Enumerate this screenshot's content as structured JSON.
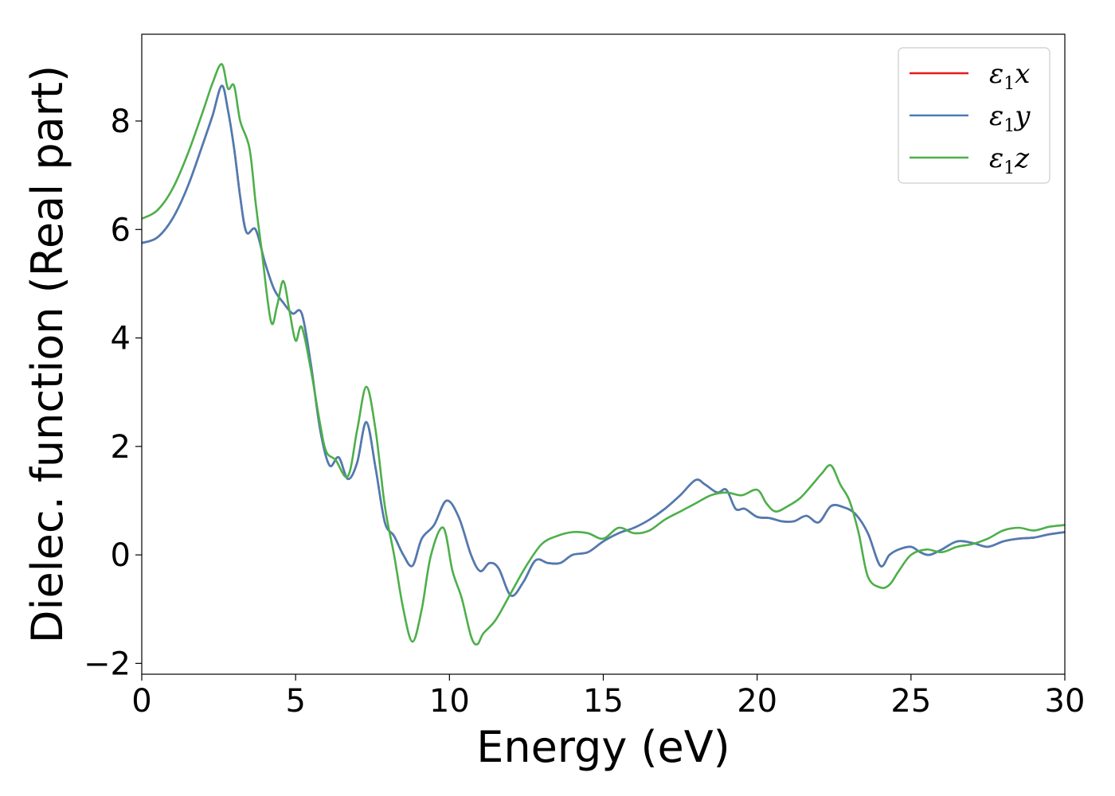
{
  "chart_data": {
    "type": "line",
    "title": "",
    "xlabel": "Energy (eV)",
    "ylabel": "Dielec. function (Real part)",
    "xlim": [
      0,
      30
    ],
    "ylim": [
      -2.2,
      9.6
    ],
    "xticks": [
      0,
      5,
      10,
      15,
      20,
      25,
      30
    ],
    "yticks": [
      -2,
      0,
      2,
      4,
      6,
      8
    ],
    "grid": false,
    "legend_position": "top-right",
    "series": [
      {
        "name": "ε1x",
        "legend_symbol": "ε",
        "legend_sub": "1",
        "legend_var": "x",
        "color": "#e41a1c",
        "x": [
          0,
          0.5,
          1.0,
          1.5,
          2.0,
          2.3,
          2.6,
          2.8,
          3.0,
          3.2,
          3.4,
          3.7,
          4.0,
          4.3,
          4.6,
          4.9,
          5.2,
          5.5,
          5.8,
          6.1,
          6.4,
          6.7,
          7.0,
          7.3,
          7.6,
          7.9,
          8.2,
          8.5,
          8.8,
          9.1,
          9.5,
          9.9,
          10.3,
          10.7,
          11.0,
          11.3,
          11.6,
          12.0,
          12.4,
          12.8,
          13.2,
          13.6,
          14.0,
          14.5,
          15.0,
          15.5,
          16.0,
          16.5,
          17.0,
          17.5,
          18.0,
          18.3,
          18.7,
          19.0,
          19.3,
          19.6,
          20.0,
          20.4,
          20.8,
          21.2,
          21.6,
          22.0,
          22.4,
          22.8,
          23.2,
          23.6,
          24.0,
          24.3,
          24.6,
          25.0,
          25.3,
          25.6,
          26.0,
          26.5,
          27.0,
          27.5,
          28.0,
          28.5,
          29.0,
          29.5,
          30.0
        ],
        "y": [
          5.75,
          5.85,
          6.2,
          6.8,
          7.6,
          8.1,
          8.65,
          8.2,
          7.5,
          6.6,
          5.95,
          6.0,
          5.4,
          4.9,
          4.65,
          4.45,
          4.45,
          3.5,
          2.3,
          1.65,
          1.8,
          1.4,
          1.7,
          2.45,
          1.6,
          0.6,
          0.35,
          0.0,
          -0.2,
          0.3,
          0.55,
          1.0,
          0.7,
          0.0,
          -0.3,
          -0.15,
          -0.25,
          -0.75,
          -0.5,
          -0.1,
          -0.15,
          -0.15,
          0.0,
          0.05,
          0.25,
          0.4,
          0.5,
          0.65,
          0.85,
          1.1,
          1.38,
          1.3,
          1.15,
          1.2,
          0.85,
          0.85,
          0.7,
          0.68,
          0.62,
          0.62,
          0.72,
          0.6,
          0.9,
          0.88,
          0.75,
          0.4,
          -0.2,
          0.0,
          0.1,
          0.15,
          0.05,
          0.0,
          0.1,
          0.25,
          0.22,
          0.15,
          0.25,
          0.3,
          0.32,
          0.38,
          0.42
        ]
      },
      {
        "name": "ε1y",
        "legend_symbol": "ε",
        "legend_sub": "1",
        "legend_var": "y",
        "color": "#4a7db5",
        "x": [
          0,
          0.5,
          1.0,
          1.5,
          2.0,
          2.3,
          2.6,
          2.8,
          3.0,
          3.2,
          3.4,
          3.7,
          4.0,
          4.3,
          4.6,
          4.9,
          5.2,
          5.5,
          5.8,
          6.1,
          6.4,
          6.7,
          7.0,
          7.3,
          7.6,
          7.9,
          8.2,
          8.5,
          8.8,
          9.1,
          9.5,
          9.9,
          10.3,
          10.7,
          11.0,
          11.3,
          11.6,
          12.0,
          12.4,
          12.8,
          13.2,
          13.6,
          14.0,
          14.5,
          15.0,
          15.5,
          16.0,
          16.5,
          17.0,
          17.5,
          18.0,
          18.3,
          18.7,
          19.0,
          19.3,
          19.6,
          20.0,
          20.4,
          20.8,
          21.2,
          21.6,
          22.0,
          22.4,
          22.8,
          23.2,
          23.6,
          24.0,
          24.3,
          24.6,
          25.0,
          25.3,
          25.6,
          26.0,
          26.5,
          27.0,
          27.5,
          28.0,
          28.5,
          29.0,
          29.5,
          30.0
        ],
        "y": [
          5.75,
          5.85,
          6.2,
          6.8,
          7.6,
          8.1,
          8.65,
          8.2,
          7.5,
          6.6,
          5.95,
          6.0,
          5.4,
          4.9,
          4.65,
          4.45,
          4.45,
          3.5,
          2.3,
          1.65,
          1.8,
          1.4,
          1.7,
          2.45,
          1.6,
          0.6,
          0.35,
          0.0,
          -0.2,
          0.3,
          0.55,
          1.0,
          0.7,
          0.0,
          -0.3,
          -0.15,
          -0.25,
          -0.75,
          -0.5,
          -0.1,
          -0.15,
          -0.15,
          0.0,
          0.05,
          0.25,
          0.4,
          0.5,
          0.65,
          0.85,
          1.1,
          1.38,
          1.3,
          1.15,
          1.2,
          0.85,
          0.85,
          0.7,
          0.68,
          0.62,
          0.62,
          0.72,
          0.6,
          0.9,
          0.88,
          0.75,
          0.4,
          -0.2,
          0.0,
          0.1,
          0.15,
          0.05,
          0.0,
          0.1,
          0.25,
          0.22,
          0.15,
          0.25,
          0.3,
          0.32,
          0.38,
          0.42
        ]
      },
      {
        "name": "ε1z",
        "legend_symbol": "ε",
        "legend_sub": "1",
        "legend_var": "z",
        "color": "#4daf4a",
        "x": [
          0,
          0.5,
          1.0,
          1.5,
          2.0,
          2.3,
          2.6,
          2.8,
          3.0,
          3.2,
          3.5,
          3.7,
          3.9,
          4.2,
          4.4,
          4.6,
          4.8,
          5.0,
          5.2,
          5.5,
          5.8,
          6.0,
          6.3,
          6.7,
          7.0,
          7.3,
          7.6,
          7.9,
          8.2,
          8.5,
          8.8,
          9.1,
          9.4,
          9.8,
          10.1,
          10.4,
          10.7,
          10.9,
          11.1,
          11.5,
          12.0,
          12.5,
          13.0,
          13.5,
          14.0,
          14.5,
          15.0,
          15.5,
          16.0,
          16.5,
          17.0,
          17.5,
          18.0,
          18.5,
          19.0,
          19.5,
          20.0,
          20.3,
          20.6,
          21.0,
          21.4,
          21.8,
          22.1,
          22.4,
          22.7,
          23.0,
          23.3,
          23.6,
          24.0,
          24.3,
          24.6,
          25.0,
          25.5,
          26.0,
          26.5,
          27.0,
          27.5,
          28.0,
          28.5,
          29.0,
          29.5,
          30.0
        ],
        "y": [
          6.2,
          6.35,
          6.75,
          7.4,
          8.2,
          8.7,
          9.05,
          8.6,
          8.65,
          8.0,
          7.5,
          6.5,
          5.6,
          4.3,
          4.6,
          5.05,
          4.5,
          3.95,
          4.2,
          3.4,
          2.4,
          1.9,
          1.75,
          1.45,
          2.3,
          3.1,
          2.3,
          0.9,
          0.0,
          -1.0,
          -1.6,
          -1.0,
          0.0,
          0.5,
          -0.3,
          -0.8,
          -1.5,
          -1.65,
          -1.45,
          -1.2,
          -0.7,
          -0.2,
          0.2,
          0.35,
          0.42,
          0.4,
          0.3,
          0.5,
          0.4,
          0.45,
          0.65,
          0.8,
          0.95,
          1.1,
          1.15,
          1.1,
          1.2,
          0.95,
          0.8,
          0.9,
          1.05,
          1.3,
          1.5,
          1.65,
          1.3,
          1.0,
          0.4,
          -0.4,
          -0.6,
          -0.55,
          -0.3,
          0.0,
          0.1,
          0.05,
          0.15,
          0.2,
          0.3,
          0.45,
          0.5,
          0.45,
          0.52,
          0.55
        ]
      }
    ]
  }
}
